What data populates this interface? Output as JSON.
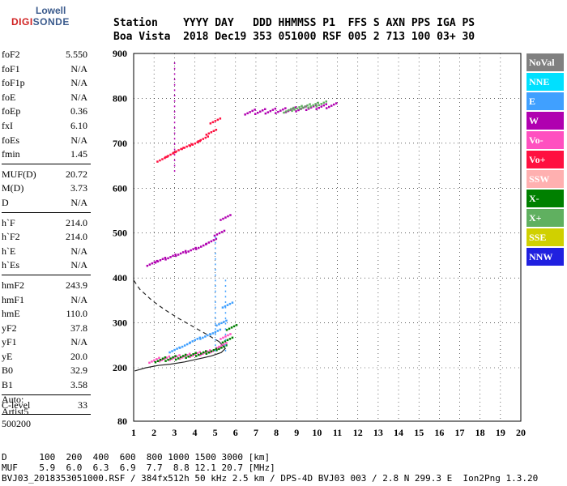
{
  "logo": {
    "line1": "Lowell",
    "line2a": "DIGI",
    "line2b": "SONDE"
  },
  "header": {
    "line1": "Station    YYYY DAY   DDD HHMMSS P1  FFS S AXN PPS IGA PS",
    "line2": "Boa Vista  2018 Dec19 353 051000 RSF 005 2 713 100 03+ 30"
  },
  "params": {
    "group1": [
      {
        "label": "foF2",
        "value": "5.550"
      },
      {
        "label": "foF1",
        "value": "N/A"
      },
      {
        "label": "foF1p",
        "value": "N/A"
      },
      {
        "label": "foE",
        "value": "N/A"
      },
      {
        "label": "foEp",
        "value": "0.36"
      },
      {
        "label": "fxI",
        "value": "6.10"
      },
      {
        "label": "foEs",
        "value": "N/A"
      },
      {
        "label": "fmin",
        "value": "1.45"
      }
    ],
    "group2": [
      {
        "label": "MUF(D)",
        "value": "20.72"
      },
      {
        "label": "M(D)",
        "value": "3.73"
      },
      {
        "label": "D",
        "value": "N/A"
      }
    ],
    "group3": [
      {
        "label": "h`F",
        "value": "214.0"
      },
      {
        "label": "h`F2",
        "value": "214.0"
      },
      {
        "label": "h`E",
        "value": "N/A"
      },
      {
        "label": "h`Es",
        "value": "N/A"
      }
    ],
    "group4": [
      {
        "label": "hmF2",
        "value": "243.9"
      },
      {
        "label": "hmF1",
        "value": "N/A"
      },
      {
        "label": "hmE",
        "value": "110.0"
      },
      {
        "label": "yF2",
        "value": "37.8"
      },
      {
        "label": "yF1",
        "value": "N/A"
      },
      {
        "label": "yE",
        "value": "20.0"
      },
      {
        "label": "B0",
        "value": "32.9"
      },
      {
        "label": "B1",
        "value": "3.58"
      }
    ],
    "group5": [
      {
        "label": "C-level",
        "value": "33"
      }
    ]
  },
  "auto": {
    "line1": "Auto:",
    "line2": "Artist5",
    "line3": "500200"
  },
  "legend": [
    {
      "label": "NoVal",
      "color": "#808080"
    },
    {
      "label": "NNE",
      "color": "#00e0ff"
    },
    {
      "label": "E",
      "color": "#40a0ff"
    },
    {
      "label": "W",
      "color": "#b000b0"
    },
    {
      "label": "Vo-",
      "color": "#ff50c0"
    },
    {
      "label": "Vo+",
      "color": "#ff1040"
    },
    {
      "label": "SSW",
      "color": "#ffb0b0"
    },
    {
      "label": "X-",
      "color": "#008000"
    },
    {
      "label": "X+",
      "color": "#60b060"
    },
    {
      "label": "SSE",
      "color": "#d0d000"
    },
    {
      "label": "NNW",
      "color": "#2020e0"
    }
  ],
  "footer": {
    "line1": "D      100  200  400  600  800 1000 1500 3000 [km]",
    "line2": "MUF    5.9  6.0  6.3  6.9  7.7  8.8 12.1 20.7 [MHz]",
    "line3": "BVJ03_2018353051000.RSF / 384fx512h 50 kHz 2.5 km / DPS-4D BVJ03 003 / 2.8 N 299.3 E  Ion2Png 1.3.20"
  },
  "chart_data": {
    "type": "scatter",
    "xlabel": "",
    "ylabel": "",
    "xlim": [
      1,
      20
    ],
    "ylim": [
      80,
      900
    ],
    "x_ticks": [
      1,
      2,
      3,
      4,
      5,
      6,
      7,
      8,
      9,
      10,
      11,
      12,
      13,
      14,
      15,
      16,
      17,
      18,
      19,
      20
    ],
    "y_ticks": [
      80,
      200,
      300,
      400,
      500,
      600,
      700,
      800,
      900
    ],
    "grid": true,
    "series": [
      {
        "name": "Vo-",
        "color": "#ff50c0",
        "x": [
          2.0,
          2.5,
          3.0,
          3.5,
          4.0,
          4.5,
          5.0,
          5.3,
          5.5
        ],
        "y": [
          217,
          220,
          223,
          226,
          230,
          234,
          240,
          250,
          270
        ]
      },
      {
        "name": "X-",
        "color": "#008000",
        "x": [
          2.3,
          2.8,
          3.3,
          3.8,
          4.3,
          4.8,
          5.3,
          5.6,
          5.8
        ],
        "y": [
          218,
          221,
          224,
          228,
          232,
          237,
          245,
          262,
          290
        ]
      },
      {
        "name": "E",
        "color": "#40a0ff",
        "x": [
          3.0,
          3.5,
          4.0,
          4.5,
          5.0,
          5.3,
          5.6
        ],
        "y": [
          240,
          250,
          262,
          270,
          280,
          300,
          340
        ]
      },
      {
        "name": "W",
        "color": "#b000b0",
        "x": [
          1.9,
          2.3,
          2.8,
          3.3,
          3.8,
          4.3,
          4.8,
          5.2,
          5.5
        ],
        "y": [
          433,
          440,
          447,
          455,
          462,
          470,
          482,
          500,
          535
        ]
      },
      {
        "name": "Vo+",
        "color": "#ff1040",
        "x": [
          2.4,
          2.8,
          3.2,
          3.6,
          4.0,
          4.4,
          4.8,
          5.0
        ],
        "y": [
          665,
          675,
          685,
          693,
          700,
          710,
          725,
          750
        ]
      },
      {
        "name": "W",
        "color": "#b000b0",
        "x": [
          6.7,
          7.2,
          7.7,
          8.2,
          8.7,
          9.2,
          9.7,
          10.2,
          10.7
        ],
        "y": [
          770,
          771,
          772,
          773,
          775,
          777,
          780,
          782,
          784
        ]
      },
      {
        "name": "X+",
        "color": "#60b060",
        "x": [
          8.6,
          9.0,
          9.4,
          9.8,
          10.2
        ],
        "y": [
          774,
          778,
          782,
          785,
          788
        ]
      }
    ],
    "profile_curve": {
      "x": [
        1.05,
        1.6,
        2.2,
        2.8,
        3.5,
        4.2,
        4.8,
        5.3,
        5.5,
        5.2,
        4.6,
        3.9,
        3.2,
        2.5,
        1.9,
        1.3,
        1.0
      ],
      "y": [
        193,
        200,
        205,
        208,
        213,
        220,
        226,
        234,
        243,
        258,
        274,
        292,
        310,
        330,
        350,
        375,
        395
      ]
    }
  }
}
